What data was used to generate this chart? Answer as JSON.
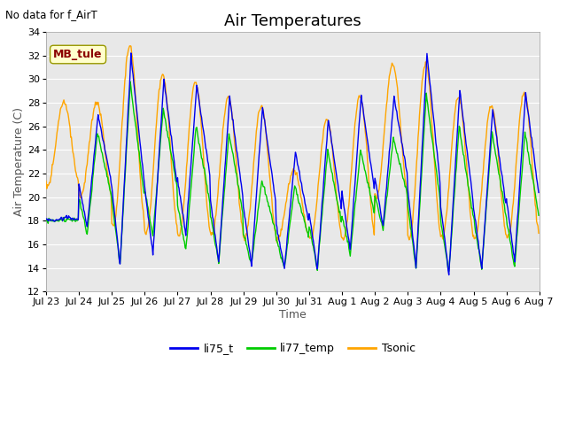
{
  "title": "Air Temperatures",
  "xlabel": "Time",
  "ylabel": "Air Temperature (C)",
  "text_no_data": "No data for f_AirT",
  "legend_label_text": "MB_tule",
  "ylim": [
    12,
    34
  ],
  "yticks": [
    12,
    14,
    16,
    18,
    20,
    22,
    24,
    26,
    28,
    30,
    32,
    34
  ],
  "series": {
    "li75_t": {
      "color": "#0000EE",
      "lw": 1.0
    },
    "li77_temp": {
      "color": "#00CC00",
      "lw": 1.0
    },
    "Tsonic": {
      "color": "#FFA500",
      "lw": 1.0
    }
  },
  "plot_bg_color": "#E8E8E8",
  "fig_bg_color": "#FFFFFF",
  "title_fontsize": 13,
  "label_fontsize": 9,
  "tick_fontsize": 8,
  "tick_labels": [
    "Jul 23",
    "Jul 24",
    "Jul 25",
    "Jul 26",
    "Jul 27",
    "Jul 28",
    "Jul 29",
    "Jul 30",
    "Jul 31",
    "Aug 1",
    "Aug 2",
    "Aug 3",
    "Aug 4",
    "Aug 5",
    "Aug 6",
    "Aug 7"
  ],
  "n_days": 15,
  "day_peaks_blue": [
    18.3,
    27.0,
    32.0,
    30.0,
    29.5,
    28.5,
    27.7,
    23.8,
    26.6,
    28.5,
    28.5,
    32.1,
    29.0,
    27.5,
    28.9
  ],
  "day_mins_blue": [
    18.0,
    17.5,
    14.2,
    15.2,
    16.8,
    14.5,
    14.2,
    14.0,
    13.9,
    15.5,
    17.5,
    14.0,
    13.5,
    14.0,
    14.5
  ],
  "day_peaks_green": [
    18.1,
    25.5,
    29.7,
    27.5,
    26.0,
    25.5,
    21.5,
    21.0,
    24.0,
    24.0,
    25.0,
    28.8,
    26.0,
    25.5,
    25.5
  ],
  "day_mins_green": [
    18.0,
    16.8,
    14.2,
    16.7,
    15.5,
    14.5,
    14.3,
    13.9,
    13.9,
    15.2,
    17.3,
    13.9,
    13.6,
    14.0,
    14.0
  ],
  "day_peaks_orange": [
    28.0,
    28.0,
    32.8,
    30.3,
    29.8,
    28.4,
    27.7,
    22.3,
    26.5,
    28.5,
    31.2,
    31.3,
    28.5,
    27.8,
    28.8
  ],
  "day_mins_orange": [
    21.0,
    20.0,
    17.5,
    17.0,
    16.8,
    16.8,
    16.5,
    16.5,
    16.4,
    16.5,
    20.0,
    16.5,
    16.5,
    16.5,
    16.5
  ]
}
